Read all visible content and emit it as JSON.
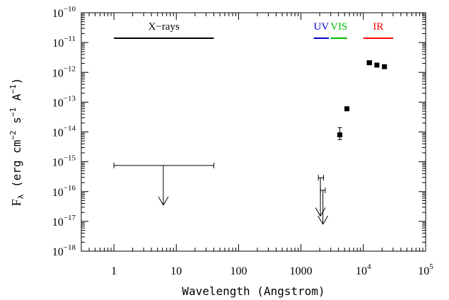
{
  "chart_data": {
    "type": "scatter",
    "title": "",
    "xlabel": "Wavelength (Angstrom)",
    "ylabel": {
      "prefix": "F",
      "sub": "λ",
      "parts": [
        {
          "t": " (erg cm",
          "sup": ""
        },
        {
          "t": "",
          "sup": "−2"
        },
        {
          "t": " s",
          "sup": ""
        },
        {
          "t": "",
          "sup": "−1"
        },
        {
          "t": " A",
          "sup": ""
        },
        {
          "t": "",
          "sup": "−1"
        },
        {
          "t": ")",
          "sup": ""
        }
      ]
    },
    "xscale": "log",
    "yscale": "log",
    "xlim": [
      0.3,
      100000
    ],
    "ylim": [
      1e-18,
      1e-10
    ],
    "xticks": [
      {
        "value": 1,
        "label": "1"
      },
      {
        "value": 10,
        "label": "10"
      },
      {
        "value": 100,
        "label": "100"
      },
      {
        "value": 1000,
        "label": "1000"
      },
      {
        "value": 10000,
        "base": "10",
        "exp": "4"
      },
      {
        "value": 100000,
        "base": "10",
        "exp": "5"
      }
    ],
    "yticks": [
      {
        "value": 1e-10,
        "base": "10",
        "exp": "−10"
      },
      {
        "value": 1e-11,
        "base": "10",
        "exp": "−11"
      },
      {
        "value": 1e-12,
        "base": "10",
        "exp": "−12"
      },
      {
        "value": 1e-13,
        "base": "10",
        "exp": "−13"
      },
      {
        "value": 1e-14,
        "base": "10",
        "exp": "−14"
      },
      {
        "value": 1e-15,
        "base": "10",
        "exp": "−15"
      },
      {
        "value": 1e-16,
        "base": "10",
        "exp": "−16"
      },
      {
        "value": 1e-17,
        "base": "10",
        "exp": "−17"
      },
      {
        "value": 1e-18,
        "base": "10",
        "exp": "−18"
      }
    ],
    "bands": [
      {
        "label": "X−rays",
        "x_range": [
          1,
          40
        ],
        "y": 1.4e-11,
        "color": "#000000"
      },
      {
        "label": "UV",
        "x_range": [
          1600,
          2800
        ],
        "y": 1.4e-11,
        "color": "#0000cc"
      },
      {
        "label": "VIS",
        "x_range": [
          3000,
          5500
        ],
        "y": 1.4e-11,
        "color": "#00bb00"
      },
      {
        "label": "IR",
        "x_range": [
          10000,
          30000
        ],
        "y": 1.4e-11,
        "color": "#ff0000"
      }
    ],
    "points": [
      {
        "x": 4200,
        "y": 8e-15,
        "xerr": [
          3900,
          4500
        ],
        "yerr": [
          5.5e-15,
          1.4e-14
        ]
      },
      {
        "x": 5450,
        "y": 6e-14
      },
      {
        "x": 12500,
        "y": 2.1e-12,
        "xerr": [
          11500,
          13600
        ]
      },
      {
        "x": 16500,
        "y": 1.75e-12,
        "xerr": [
          15500,
          17700
        ]
      },
      {
        "x": 21800,
        "y": 1.55e-12,
        "xerr": [
          20300,
          23500
        ]
      }
    ],
    "upper_limits": [
      {
        "x_range": [
          1,
          40
        ],
        "y": 7.5e-16,
        "arrow_x": 6.2,
        "arrow_to": 3.5e-17
      },
      {
        "x_range": [
          1900,
          2300
        ],
        "y": 2.9e-16,
        "arrow_x": 2050,
        "arrow_to": 1.5e-17
      },
      {
        "x_range": [
          2050,
          2450
        ],
        "y": 1.1e-16,
        "arrow_x": 2250,
        "arrow_to": 8e-18
      }
    ]
  }
}
